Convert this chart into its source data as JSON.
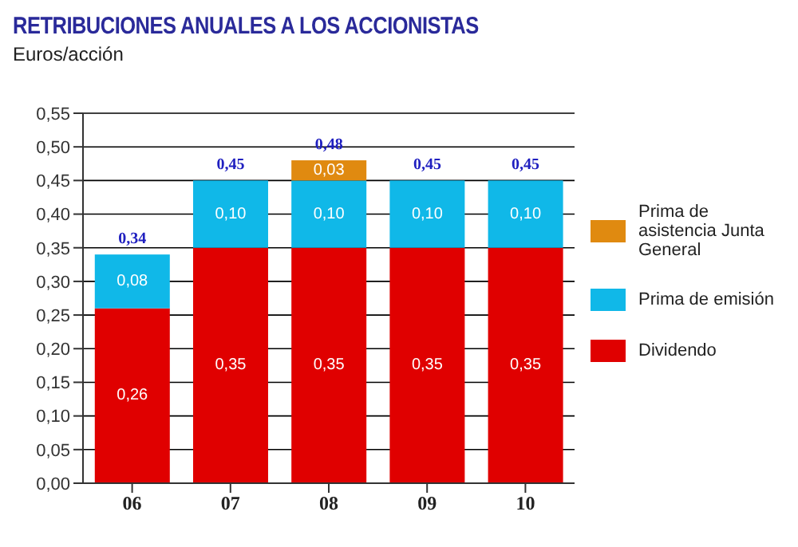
{
  "chart_data": {
    "type": "bar",
    "title": "RETRIBUCIONES ANUALES A LOS ACCIONISTAS",
    "ylabel": "Euros/acción",
    "categories": [
      "06",
      "07",
      "08",
      "09",
      "10"
    ],
    "stacked": true,
    "series": [
      {
        "name": "Dividendo",
        "color": "#e00000",
        "values": [
          0.26,
          0.35,
          0.35,
          0.35,
          0.35
        ],
        "value_labels": [
          "0,26",
          "0,35",
          "0,35",
          "0,35",
          "0,35"
        ]
      },
      {
        "name": "Prima de emisión",
        "color": "#10b8e8",
        "values": [
          0.08,
          0.1,
          0.1,
          0.1,
          0.1
        ],
        "value_labels": [
          "0,08",
          "0,10",
          "0,10",
          "0,10",
          "0,10"
        ]
      },
      {
        "name": "Prima de asistencia Junta General",
        "color": "#e08a10",
        "values": [
          null,
          null,
          0.03,
          null,
          null
        ],
        "value_labels": [
          null,
          null,
          "0,03",
          null,
          null
        ]
      }
    ],
    "totals": [
      "0,34",
      "0,45",
      "0,48",
      "0,45",
      "0,45"
    ],
    "ylim": [
      0,
      0.55
    ],
    "yticks": [
      {
        "value": 0,
        "label": "0,00"
      },
      {
        "value": 0.05,
        "label": "0,05"
      },
      {
        "value": 0.1,
        "label": "0,10"
      },
      {
        "value": 0.15,
        "label": "0,15"
      },
      {
        "value": 0.2,
        "label": "0,20"
      },
      {
        "value": 0.25,
        "label": "0,25"
      },
      {
        "value": 0.3,
        "label": "0,30"
      },
      {
        "value": 0.35,
        "label": "0,35"
      },
      {
        "value": 0.4,
        "label": "0,40"
      },
      {
        "value": 0.45,
        "label": "0,45"
      },
      {
        "value": 0.5,
        "label": "0,50"
      },
      {
        "value": 0.55,
        "label": "0,55"
      }
    ],
    "grid": "y",
    "legend": "right"
  }
}
